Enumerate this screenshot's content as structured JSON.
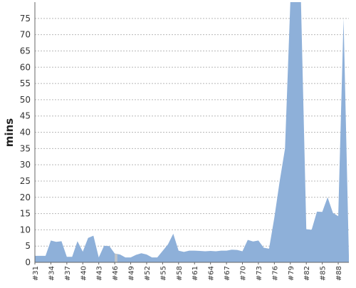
{
  "chart_data": {
    "type": "area",
    "title": "",
    "xlabel": "",
    "ylabel": "mins",
    "ylim": [
      0,
      80
    ],
    "yticks": [
      0,
      5,
      10,
      15,
      20,
      25,
      30,
      35,
      40,
      45,
      50,
      55,
      60,
      65,
      70,
      75
    ],
    "xtick_labels": [
      "#31",
      "#34",
      "#37",
      "#40",
      "#43",
      "#46",
      "#49",
      "#52",
      "#55",
      "#58",
      "#61",
      "#64",
      "#67",
      "#70",
      "#73",
      "#76",
      "#79",
      "#82",
      "#85",
      "#88"
    ],
    "x": [
      31,
      32,
      33,
      34,
      35,
      36,
      37,
      38,
      39,
      40,
      41,
      42,
      43,
      44,
      45,
      46,
      47,
      48,
      49,
      50,
      51,
      52,
      53,
      54,
      55,
      56,
      57,
      58,
      59,
      60,
      61,
      62,
      63,
      64,
      65,
      66,
      67,
      68,
      69,
      70,
      71,
      72,
      73,
      74,
      75,
      76,
      77,
      78,
      79,
      80,
      81,
      82,
      83,
      84,
      85,
      86,
      87,
      88,
      89,
      90
    ],
    "values": [
      2,
      2,
      2,
      6.7,
      6.3,
      6.5,
      1.7,
      1.7,
      6.5,
      3.3,
      7.5,
      8.2,
      1.5,
      5.1,
      5.0,
      2.7,
      2.4,
      1.5,
      1.5,
      2.3,
      2.8,
      2.4,
      1.5,
      1.5,
      3.5,
      5.5,
      8.8,
      3.6,
      3.2,
      3.6,
      3.6,
      3.5,
      3.4,
      3.5,
      3.4,
      3.6,
      3.6,
      3.9,
      3.8,
      3.4,
      6.9,
      6.4,
      6.7,
      4.5,
      4.2,
      13.8,
      25,
      35,
      80,
      80,
      80,
      10.2,
      10,
      15.6,
      15.5,
      20,
      15.2,
      14.2,
      75,
      2
    ],
    "grid": true,
    "fill_color": "#8eb0d9",
    "highlight_color": "#c0c4c8",
    "highlight_range": [
      46,
      46.5
    ]
  }
}
